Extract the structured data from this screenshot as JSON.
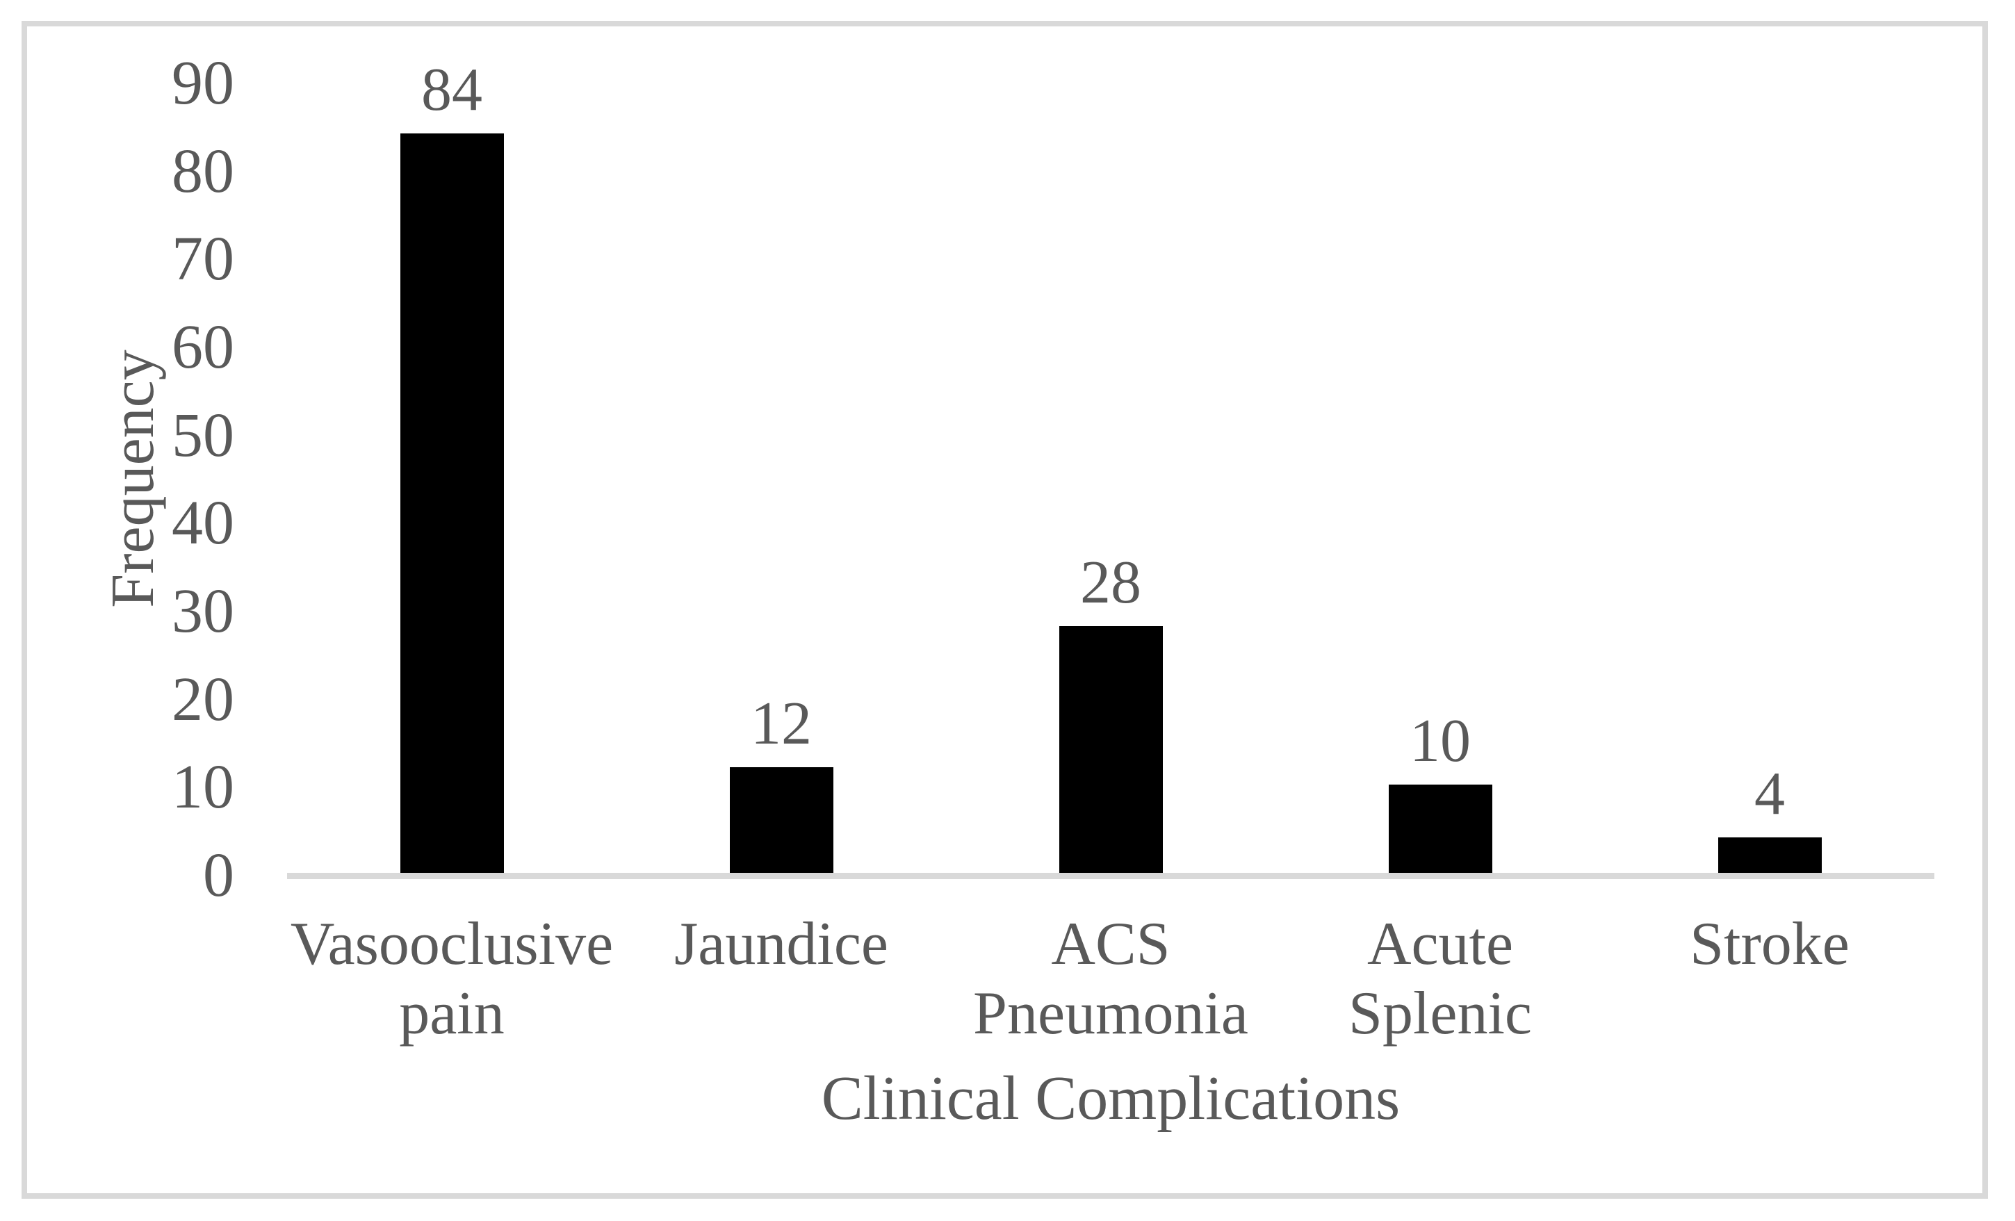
{
  "chart_data": {
    "type": "bar",
    "title": "",
    "categories": [
      [
        "Vasooclusive",
        "pain"
      ],
      [
        "Jaundice"
      ],
      [
        "ACS",
        "Pneumonia"
      ],
      [
        "Acute",
        "Splenic"
      ],
      [
        "Stroke"
      ]
    ],
    "category_names": [
      "Vasooclusive pain",
      "Jaundice",
      "ACS Pneumonia",
      "Acute Splenic",
      "Stroke"
    ],
    "values": [
      84,
      12,
      28,
      10,
      4
    ],
    "data_labels": [
      "84",
      "12",
      "28",
      "10",
      "4"
    ],
    "xlabel": "Clinical Complications",
    "ylabel": "Frequency",
    "ylim": [
      0,
      90
    ],
    "yticks": [
      "0",
      "10",
      "20",
      "30",
      "40",
      "50",
      "60",
      "70",
      "80",
      "90"
    ],
    "grid": false,
    "legend_position": "none",
    "bar_color": "#000000",
    "text_color": "#595959",
    "axis_line_color": "#d9d9d9",
    "frame_color": "#d9d9d9",
    "background_color": "#ffffff"
  }
}
